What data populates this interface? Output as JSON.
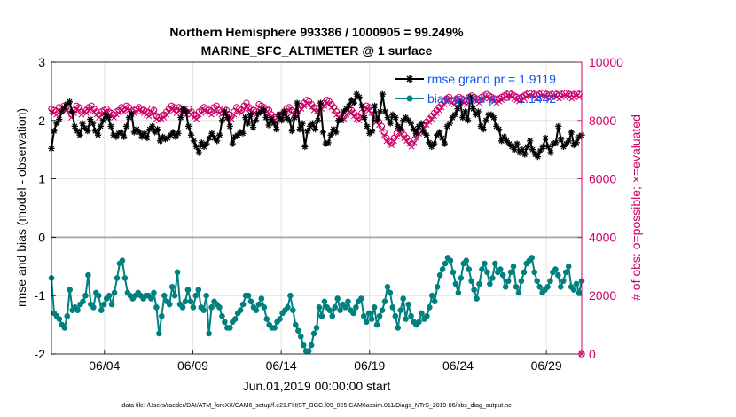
{
  "chart_data": {
    "type": "line",
    "title": "Northern Hemisphere 993386 / 1000905 = 99.249%",
    "subtitle": "MARINE_SFC_ALTIMETER @ 1 surface",
    "xlabel": "Jun.01,2019 00:00:00 start",
    "ylabel_left": "rmse and bias (model - observation)",
    "ylabel_right": "# of obs: o=possible; ×=evaluated",
    "footer": "data file: /Users/raeder/DAI/ATM_forcXX/CAM6_setup/f.e21.FHIST_BGC.f09_025.CAM6assim.011/Diags_NTrS_2019-06/obs_diag_output.nc",
    "x_range": [
      1.0,
      31.0
    ],
    "ylim_left": [
      -2,
      3
    ],
    "ylim_right": [
      0,
      10000
    ],
    "grid": true,
    "zero_line": true,
    "legend_placement": "top-right",
    "x_ticks": [
      {
        "value": 4,
        "label": "06/04"
      },
      {
        "value": 9,
        "label": "06/09"
      },
      {
        "value": 14,
        "label": "06/14"
      },
      {
        "value": 19,
        "label": "06/19"
      },
      {
        "value": 24,
        "label": "06/24"
      },
      {
        "value": 29,
        "label": "06/29"
      }
    ],
    "y_ticks_left": [
      "-2",
      "-1",
      "0",
      "1",
      "2",
      "3"
    ],
    "y_ticks_right": [
      "0",
      "2000",
      "4000",
      "6000",
      "8000",
      "10000"
    ],
    "colors": {
      "rmse": "#000000",
      "bias": "#00807f",
      "obs": "#cc0066",
      "legend_text": "#1155ee",
      "zero_line": "#b4a9a9",
      "grid": "#dddddd"
    },
    "series": [
      {
        "name": "rmse grand pr = 1.9119",
        "axis": "left",
        "marker": "asterisk",
        "values": [
          1.52,
          1.82,
          1.95,
          2.02,
          2.15,
          2.22,
          2.28,
          2.32,
          2.15,
          1.9,
          1.82,
          1.75,
          1.95,
          1.87,
          1.82,
          2.02,
          1.95,
          1.82,
          1.75,
          1.9,
          2.0,
          2.1,
          2.05,
          1.9,
          1.75,
          1.72,
          1.78,
          1.8,
          1.72,
          1.9,
          2.05,
          2.12,
          1.8,
          1.85,
          1.8,
          1.72,
          1.78,
          1.7,
          1.85,
          1.9,
          1.8,
          1.85,
          1.65,
          1.72,
          1.68,
          1.7,
          1.75,
          1.8,
          1.72,
          1.78,
          2.05,
          2.2,
          2.15,
          1.9,
          1.75,
          1.65,
          1.55,
          1.45,
          1.62,
          1.55,
          1.6,
          1.7,
          1.78,
          1.7,
          1.65,
          1.75,
          2.0,
          2.15,
          2.05,
          1.9,
          1.6,
          1.72,
          1.75,
          1.8,
          1.78,
          2.05,
          1.95,
          2.1,
          1.88,
          2.0,
          2.12,
          2.15,
          2.18,
          2.05,
          1.92,
          2.02,
          1.95,
          1.85,
          2.1,
          2.0,
          2.15,
          2.05,
          2.0,
          1.82,
          2.05,
          2.3,
          1.85,
          1.95,
          1.55,
          1.82,
          1.9,
          1.95,
          1.85,
          2.0,
          2.3,
          1.8,
          1.6,
          1.62,
          1.75,
          1.85,
          1.8,
          2.0,
          2.0,
          2.15,
          2.2,
          2.25,
          2.35,
          2.3,
          2.45,
          2.4,
          2.25,
          2.05,
          1.9,
          1.78,
          1.82,
          2.25,
          2.0,
          2.15,
          2.45,
          2.15,
          2.05,
          1.95,
          2.1,
          2.05,
          1.9,
          1.85,
          2.0,
          2.05,
          2.0,
          1.95,
          1.85,
          1.78,
          1.9,
          1.95,
          1.8,
          1.75,
          1.62,
          1.55,
          1.6,
          1.75,
          1.8,
          1.7,
          1.6,
          1.9,
          1.95,
          2.05,
          2.1,
          2.2,
          2.3,
          2.05,
          2.15,
          2.0,
          2.4,
          2.2,
          2.1,
          2.15,
          1.9,
          1.85,
          2.0,
          2.1,
          2.1,
          2.05,
          1.9,
          1.85,
          1.65,
          1.72,
          1.65,
          1.6,
          1.55,
          1.5,
          1.6,
          1.45,
          1.5,
          1.42,
          1.55,
          1.65,
          1.5,
          1.42,
          1.38,
          1.48,
          1.55,
          1.7,
          1.55,
          1.45,
          1.6,
          1.62,
          1.9,
          1.68,
          1.55,
          1.6,
          1.65,
          1.8,
          1.58,
          1.62,
          1.72,
          1.75
        ]
      },
      {
        "name": "bias grand pr = -1.1442",
        "axis": "left",
        "marker": "circle",
        "values": [
          -0.7,
          -1.3,
          -1.35,
          -1.4,
          -1.5,
          -1.55,
          -1.35,
          -0.9,
          -1.25,
          -1.2,
          -1.25,
          -1.15,
          -1.1,
          -1.0,
          -0.65,
          -1.15,
          -1.2,
          -0.95,
          -1.0,
          -1.25,
          -1.15,
          -1.05,
          -1.0,
          -1.15,
          -0.95,
          -0.7,
          -0.45,
          -0.4,
          -0.7,
          -0.95,
          -1.0,
          -1.05,
          -1.0,
          -0.95,
          -1.0,
          -1.05,
          -1.0,
          -1.0,
          -1.05,
          -0.95,
          -1.2,
          -1.65,
          -1.35,
          -1.0,
          -1.1,
          -1.15,
          -0.85,
          -1.0,
          -0.6,
          -1.15,
          -1.2,
          -1.1,
          -0.9,
          -1.1,
          -1.2,
          -1.0,
          -0.9,
          -1.2,
          -1.25,
          -1.0,
          -1.65,
          -1.2,
          -1.1,
          -1.15,
          -1.2,
          -1.35,
          -1.45,
          -1.55,
          -1.55,
          -1.45,
          -1.4,
          -1.3,
          -1.25,
          -1.15,
          -1.0,
          -1.0,
          -1.1,
          -1.2,
          -1.25,
          -1.15,
          -1.05,
          -1.2,
          -1.4,
          -1.5,
          -1.55,
          -1.55,
          -1.45,
          -1.4,
          -1.3,
          -1.25,
          -1.2,
          -1.0,
          -1.25,
          -1.5,
          -1.6,
          -1.7,
          -1.85,
          -1.95,
          -1.95,
          -1.85,
          -1.65,
          -1.55,
          -1.2,
          -1.35,
          -1.1,
          -1.2,
          -1.25,
          -1.35,
          -1.2,
          -1.05,
          -1.25,
          -1.15,
          -1.2,
          -1.1,
          -1.25,
          -1.3,
          -1.2,
          -1.1,
          -1.05,
          -1.35,
          -1.45,
          -1.3,
          -1.4,
          -1.2,
          -1.5,
          -1.35,
          -1.25,
          -1.1,
          -0.85,
          -0.95,
          -1.2,
          -1.35,
          -1.55,
          -1.25,
          -1.05,
          -1.4,
          -1.15,
          -1.35,
          -1.45,
          -1.5,
          -1.45,
          -1.3,
          -1.4,
          -1.35,
          -1.2,
          -1.0,
          -1.1,
          -0.85,
          -0.65,
          -0.55,
          -0.45,
          -0.35,
          -0.4,
          -0.6,
          -0.8,
          -0.95,
          -0.7,
          -0.45,
          -0.4,
          -0.55,
          -0.75,
          -0.9,
          -1.05,
          -0.8,
          -0.55,
          -0.45,
          -0.6,
          -0.8,
          -0.7,
          -0.45,
          -0.6,
          -0.55,
          -0.65,
          -0.85,
          -0.75,
          -0.6,
          -0.5,
          -0.85,
          -0.95,
          -0.75,
          -0.6,
          -0.45,
          -0.4,
          -0.35,
          -0.6,
          -0.75,
          -0.85,
          -0.95,
          -0.9,
          -0.85,
          -0.75,
          -0.6,
          -0.55,
          -0.65,
          -0.85,
          -0.75,
          -0.6,
          -0.5,
          -0.85,
          -0.9,
          -0.8,
          -0.95,
          -0.75
        ]
      },
      {
        "name": "possible",
        "axis": "right",
        "marker": "open-circle",
        "values": [
          8400,
          8350,
          8300,
          8450,
          8400,
          8500,
          8450,
          8400,
          8200,
          8350,
          8500,
          8450,
          8300,
          8400,
          8350,
          8450,
          8500,
          8400,
          8300,
          8200,
          8300,
          8350,
          8400,
          8300,
          8250,
          8200,
          8300,
          8350,
          8450,
          8400,
          8500,
          8450,
          8300,
          8350,
          8400,
          8450,
          8400,
          8350,
          8300,
          8250,
          8400,
          8350,
          8150,
          8100,
          8150,
          8200,
          8300,
          8400,
          8500,
          8450,
          8350,
          8450,
          8400,
          8350,
          8300,
          8400,
          8300,
          8200,
          8150,
          8300,
          8350,
          8450,
          8400,
          8350,
          8300,
          8450,
          8500,
          8350,
          8300,
          8400,
          8350,
          8200,
          8150,
          8300,
          8450,
          8400,
          8350,
          8500,
          8600,
          8450,
          8400,
          8350,
          8300,
          8550,
          8500,
          8450,
          8400,
          8350,
          8200,
          8100,
          8050,
          8150,
          8200,
          8300,
          8400,
          8450,
          8350,
          8300,
          8250,
          8400,
          8500,
          8600,
          8700,
          8650,
          8550,
          8450,
          8400,
          8300,
          8500,
          8600,
          8700,
          8650,
          8550,
          8450,
          8300,
          8200,
          8100,
          8150,
          8300,
          8400,
          8350,
          8250,
          8150,
          8100,
          8250,
          8400,
          8500,
          8450,
          8350,
          8200,
          8050,
          7950,
          7800,
          7600,
          7400,
          7300,
          7250,
          7400,
          7550,
          7700,
          7650,
          7500,
          7400,
          7300,
          7200,
          7350,
          7500,
          7650,
          7750,
          7850,
          7950,
          8050,
          8150,
          8250,
          8350,
          8450,
          8550,
          8650,
          8750,
          8800,
          8700,
          8650,
          8750,
          8800,
          8750,
          8700,
          8650,
          8800,
          8850,
          8800,
          8750,
          8700,
          8800,
          8850,
          8900,
          8850,
          8800,
          8750,
          8700,
          8750,
          8800,
          8850,
          8900,
          8950,
          8900,
          8850,
          8800,
          8750,
          8800,
          8850,
          8900,
          8950,
          8950,
          8900,
          8850,
          8900,
          8950,
          8950,
          8900,
          8850,
          8900,
          8950,
          8900,
          8850,
          8900,
          8950,
          8950,
          8900,
          8850,
          8900,
          8950,
          8900,
          0
        ]
      },
      {
        "name": "evaluated",
        "axis": "right",
        "marker": "cross",
        "values": [
          8300,
          8250,
          8200,
          8350,
          8300,
          8400,
          8350,
          8300,
          8100,
          8250,
          8400,
          8350,
          8200,
          8300,
          8250,
          8350,
          8400,
          8300,
          8200,
          8100,
          8200,
          8250,
          8300,
          8200,
          8150,
          8100,
          8200,
          8250,
          8350,
          8300,
          8400,
          8350,
          8200,
          8250,
          8300,
          8350,
          8300,
          8250,
          8200,
          8150,
          8300,
          8250,
          8050,
          8000,
          8050,
          8100,
          8200,
          8300,
          8400,
          8350,
          8250,
          8350,
          8300,
          8250,
          8200,
          8300,
          8200,
          8100,
          8050,
          8200,
          8250,
          8350,
          8300,
          8250,
          8200,
          8350,
          8400,
          8250,
          8200,
          8300,
          8250,
          8100,
          8050,
          8200,
          8350,
          8300,
          8250,
          8400,
          8500,
          8350,
          8300,
          8250,
          8200,
          8450,
          8400,
          8350,
          8300,
          8250,
          8100,
          8000,
          7950,
          8050,
          8100,
          8200,
          8300,
          8350,
          8250,
          8200,
          8150,
          8300,
          8400,
          8500,
          8600,
          8550,
          8450,
          8350,
          8300,
          8200,
          8400,
          8500,
          8600,
          8550,
          8450,
          8350,
          8200,
          8100,
          8000,
          8050,
          8200,
          8300,
          8250,
          8150,
          8050,
          8000,
          8150,
          8300,
          8400,
          8350,
          8250,
          8100,
          7950,
          7850,
          7700,
          7500,
          7300,
          7200,
          7150,
          7300,
          7450,
          7600,
          7550,
          7400,
          7300,
          7200,
          7100,
          7250,
          7400,
          7550,
          7650,
          7750,
          7850,
          7950,
          8050,
          8150,
          8250,
          8350,
          8450,
          8550,
          8650,
          8700,
          8600,
          8550,
          8650,
          8700,
          8650,
          8600,
          8550,
          8700,
          8750,
          8700,
          8650,
          8600,
          8700,
          8750,
          8800,
          8750,
          8700,
          8650,
          8600,
          8650,
          8700,
          8750,
          8800,
          8850,
          8800,
          8750,
          8700,
          8650,
          8700,
          8750,
          8800,
          8850,
          8850,
          8800,
          8750,
          8800,
          8850,
          8850,
          8800,
          8750,
          8800,
          8850,
          8800,
          8750,
          8800,
          8850,
          8850,
          8800,
          8750,
          8800,
          8850,
          8800,
          0
        ]
      }
    ]
  }
}
